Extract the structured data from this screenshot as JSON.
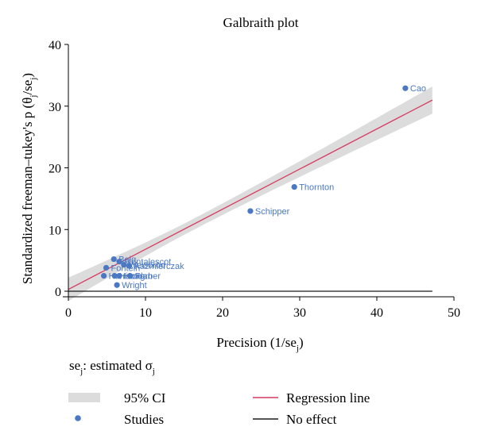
{
  "chart_data": {
    "type": "scatter",
    "title": "Galbraith plot",
    "xlabel": "Precision (1/se",
    "xlabel_sub": "j",
    "xlabel_end": ")",
    "ylabel_start": "Standardized freeman–tukey's p (θ",
    "ylabel_sub1": "j",
    "ylabel_mid": "/se",
    "ylabel_sub2": "j",
    "ylabel_end": ")",
    "xlim": [
      0,
      50
    ],
    "ylim": [
      0,
      40
    ],
    "xticks": [
      0,
      10,
      20,
      30,
      40,
      50
    ],
    "yticks": [
      0,
      10,
      20,
      30,
      40
    ],
    "note": {
      "a": "se",
      "a_sub": "j",
      "b": ": estimated σ",
      "b_sub": "j"
    },
    "points": [
      {
        "label": "Cao",
        "x": 43.7,
        "y": 32.9
      },
      {
        "label": "Thornton",
        "x": 29.3,
        "y": 16.9
      },
      {
        "label": "Schipper",
        "x": 23.6,
        "y": 13.0
      },
      {
        "label": "Baig",
        "x": 5.9,
        "y": 5.2
      },
      {
        "label": "Montalescot",
        "x": 6.6,
        "y": 4.8
      },
      {
        "label": "Weisbrod",
        "x": 7.2,
        "y": 4.3
      },
      {
        "label": "Kazmierczak",
        "x": 7.9,
        "y": 4.1
      },
      {
        "label": "Fontein",
        "x": 4.9,
        "y": 3.8
      },
      {
        "label": "Harrison",
        "x": 4.6,
        "y": 2.5
      },
      {
        "label": "Hamdan",
        "x": 6.0,
        "y": 2.5
      },
      {
        "label": "Hong",
        "x": 6.6,
        "y": 2.5
      },
      {
        "label": "Farber",
        "x": 8.0,
        "y": 2.5
      },
      {
        "label": "Wright",
        "x": 6.3,
        "y": 1.0
      }
    ],
    "regression": {
      "x_range": [
        0,
        47.2
      ],
      "intercept": 0.3,
      "slope": 0.65
    },
    "ci_half_width": {
      "at_x0": 1.9,
      "at_mean": 0.9,
      "at_xmax": 2.2
    },
    "no_effect_x_range": [
      0,
      47.2
    ],
    "legend": {
      "placement": "bottom",
      "ci": "95% CI",
      "studies": "Studies",
      "regression": "Regression line",
      "no_effect": "No effect"
    },
    "colors": {
      "points": "#4a78c2",
      "point_labels": "#4a78c2",
      "regression": "#d63a61",
      "ci_band": "#dcdcdc",
      "no_effect": "#1a1a1a"
    },
    "grid": false
  }
}
